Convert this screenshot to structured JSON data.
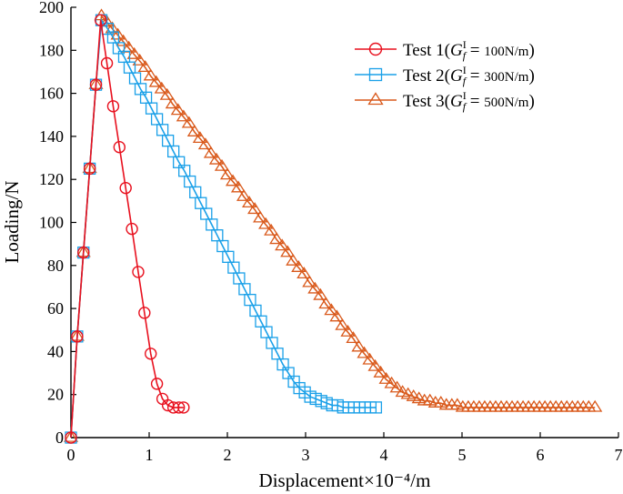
{
  "chart_data": {
    "type": "line",
    "title": "",
    "xlabel": "Displacement×10⁻⁴/m",
    "ylabel": "Loading/N",
    "xlim": [
      0,
      7
    ],
    "ylim": [
      0,
      200
    ],
    "xticks": [
      0,
      1,
      2,
      3,
      4,
      5,
      6,
      7
    ],
    "yticks": [
      0,
      20,
      40,
      60,
      80,
      100,
      120,
      140,
      160,
      180,
      200
    ],
    "grid": false,
    "legend_position": "top-right",
    "series": [
      {
        "name": "Test 1",
        "param": "100",
        "unit": "N/m",
        "color": "#e8101e",
        "marker": "circle",
        "x": [
          0,
          0.08,
          0.16,
          0.24,
          0.32,
          0.38,
          0.46,
          0.54,
          0.62,
          0.7,
          0.78,
          0.86,
          0.94,
          1.02,
          1.1,
          1.17,
          1.24,
          1.31,
          1.38,
          1.44
        ],
        "y": [
          0,
          47,
          86,
          125,
          164,
          194,
          174,
          154,
          135,
          116,
          97,
          77,
          58,
          39,
          25,
          18,
          15,
          14,
          14,
          14
        ]
      },
      {
        "name": "Test 2",
        "param": "300",
        "unit": "N/m",
        "color": "#1aa0e8",
        "marker": "square",
        "x": [
          0,
          0.08,
          0.16,
          0.24,
          0.32,
          0.39,
          0.47,
          0.54,
          0.61,
          0.68,
          0.75,
          0.82,
          0.89,
          0.96,
          1.03,
          1.1,
          1.17,
          1.24,
          1.31,
          1.38,
          1.45,
          1.52,
          1.59,
          1.66,
          1.73,
          1.8,
          1.87,
          1.94,
          2.01,
          2.08,
          2.15,
          2.22,
          2.29,
          2.36,
          2.43,
          2.5,
          2.57,
          2.64,
          2.71,
          2.78,
          2.85,
          2.92,
          2.99,
          3.06,
          3.13,
          3.2,
          3.27,
          3.34,
          3.41,
          3.48,
          3.55,
          3.62,
          3.69,
          3.76,
          3.83,
          3.9
        ],
        "y": [
          0,
          47,
          86,
          125,
          164,
          194,
          190,
          186,
          181,
          177,
          172,
          167,
          162,
          158,
          153,
          148,
          143,
          138,
          133,
          128,
          124,
          119,
          114,
          109,
          104,
          99,
          94,
          89,
          84,
          79,
          74,
          69,
          64,
          59,
          54,
          49,
          44,
          39,
          34,
          30,
          26,
          23,
          21,
          19,
          18,
          17,
          16,
          15,
          15,
          14,
          14,
          14,
          14,
          14,
          14,
          14
        ]
      },
      {
        "name": "Test 3",
        "param": "500",
        "unit": "N/m",
        "color": "#d9591b",
        "marker": "triangle",
        "x": [
          0,
          0.08,
          0.16,
          0.24,
          0.32,
          0.39,
          0.46,
          0.53,
          0.6,
          0.67,
          0.74,
          0.81,
          0.88,
          0.95,
          1.02,
          1.09,
          1.16,
          1.23,
          1.3,
          1.37,
          1.44,
          1.51,
          1.58,
          1.65,
          1.72,
          1.79,
          1.86,
          1.93,
          2.0,
          2.07,
          2.14,
          2.21,
          2.28,
          2.35,
          2.42,
          2.49,
          2.56,
          2.63,
          2.7,
          2.77,
          2.84,
          2.91,
          2.98,
          3.05,
          3.12,
          3.19,
          3.26,
          3.33,
          3.4,
          3.47,
          3.54,
          3.61,
          3.68,
          3.75,
          3.82,
          3.89,
          3.96,
          4.03,
          4.1,
          4.17,
          4.24,
          4.31,
          4.38,
          4.45,
          4.52,
          4.59,
          4.66,
          4.73,
          4.8,
          4.87,
          4.94,
          5.01,
          5.08,
          5.15,
          5.22,
          5.29,
          5.36,
          5.43,
          5.5,
          5.57,
          5.64,
          5.71,
          5.78,
          5.85,
          5.92,
          5.99,
          6.06,
          6.13,
          6.2,
          6.27,
          6.34,
          6.41,
          6.48,
          6.55,
          6.62,
          6.7
        ],
        "y": [
          0,
          47,
          86,
          125,
          164,
          196,
          193,
          190,
          187,
          184,
          181,
          178,
          175,
          172,
          168,
          165,
          162,
          159,
          155,
          152,
          149,
          146,
          142,
          139,
          136,
          132,
          129,
          126,
          122,
          119,
          116,
          112,
          109,
          106,
          102,
          99,
          96,
          92,
          89,
          86,
          82,
          79,
          76,
          72,
          69,
          66,
          62,
          59,
          56,
          52,
          49,
          46,
          42,
          39,
          36,
          33,
          30,
          27,
          25,
          23,
          21,
          20,
          19,
          18,
          17,
          17,
          16,
          16,
          15,
          15,
          15,
          14,
          14,
          14,
          14,
          14,
          14,
          14,
          14,
          14,
          14,
          14,
          14,
          14,
          14,
          14,
          14,
          14,
          14,
          14,
          14,
          14,
          14,
          14,
          14,
          14
        ]
      }
    ]
  }
}
